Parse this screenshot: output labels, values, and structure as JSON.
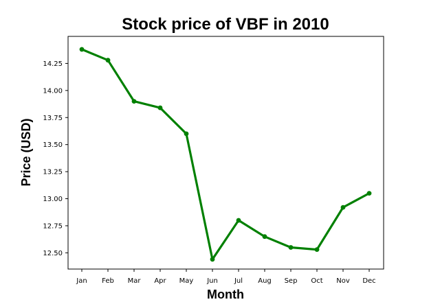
{
  "chart_data": {
    "type": "line",
    "title": "Stock price of VBF in 2010",
    "xlabel": "Month",
    "ylabel": "Price (USD)",
    "categories": [
      "Jan",
      "Feb",
      "Mar",
      "Apr",
      "May",
      "Jun",
      "Jul",
      "Aug",
      "Sep",
      "Oct",
      "Nov",
      "Dec"
    ],
    "series": [
      {
        "values": [
          14.38,
          14.28,
          13.9,
          13.84,
          13.6,
          12.44,
          12.8,
          12.65,
          12.55,
          12.53,
          12.92,
          13.05
        ],
        "color": "#008000"
      }
    ],
    "yticks": [
      "12.50",
      "12.75",
      "13.00",
      "13.25",
      "13.50",
      "13.75",
      "14.00",
      "14.25"
    ],
    "ylim": [
      12.35,
      14.5
    ],
    "grid": false,
    "legend": "none",
    "marker": "circle"
  }
}
